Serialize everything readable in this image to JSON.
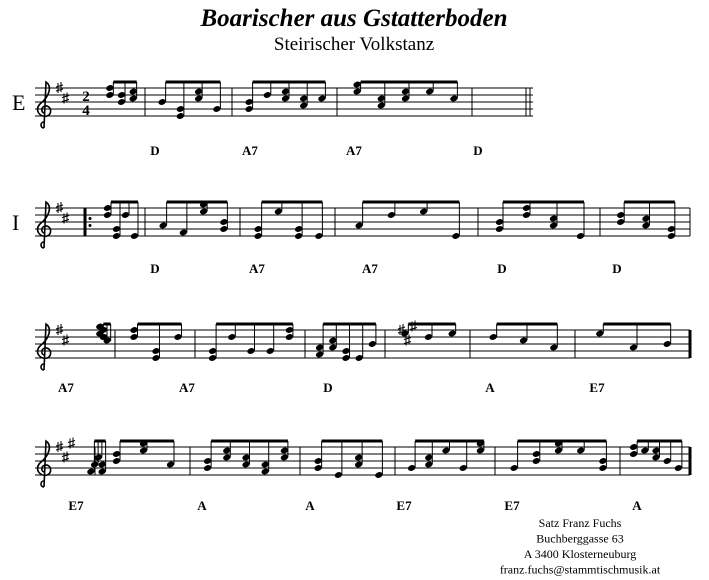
{
  "title": "Boarischer aus Gstatterboden",
  "subtitle": "Steirischer Volkstanz",
  "time_signature": {
    "top": 2,
    "bottom": 4
  },
  "systems": [
    {
      "label": "E",
      "chords": [
        "D",
        "A7",
        "A7",
        "D"
      ]
    },
    {
      "label": "I",
      "chords": [
        "D",
        "A7",
        "A7",
        "D",
        "D"
      ]
    },
    {
      "chords": [
        "A7",
        "A7",
        "D",
        "A",
        "E7"
      ]
    },
    {
      "chords": [
        "E7",
        "A",
        "A",
        "E7",
        "E7",
        "A"
      ]
    }
  ],
  "footer": [
    "Satz Franz Fuchs",
    "Buchberggasse 63",
    "A 3400 Klosterneuburg",
    "franz.fuchs@stammtischmusik.at"
  ]
}
